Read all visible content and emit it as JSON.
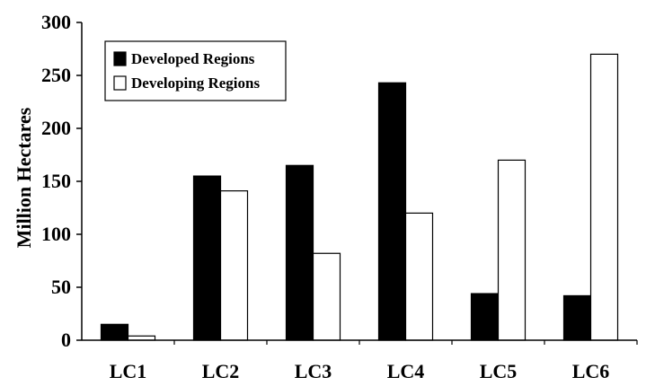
{
  "chart_data": {
    "type": "bar",
    "title": "",
    "xlabel": "",
    "ylabel": "Million Hectares",
    "ylim": [
      0,
      300
    ],
    "yticks": [
      0,
      50,
      100,
      150,
      200,
      250,
      300
    ],
    "grid": false,
    "legend_position": "top-left",
    "categories": [
      "LC1",
      "LC2",
      "LC3",
      "LC4",
      "LC5",
      "LC6"
    ],
    "series": [
      {
        "name": "Developed Regions",
        "values": [
          15,
          155,
          165,
          243,
          44,
          42
        ],
        "color": "#000000"
      },
      {
        "name": "Developing Regions",
        "values": [
          4,
          141,
          82,
          120,
          170,
          270
        ],
        "color": "#ffffff"
      }
    ]
  }
}
